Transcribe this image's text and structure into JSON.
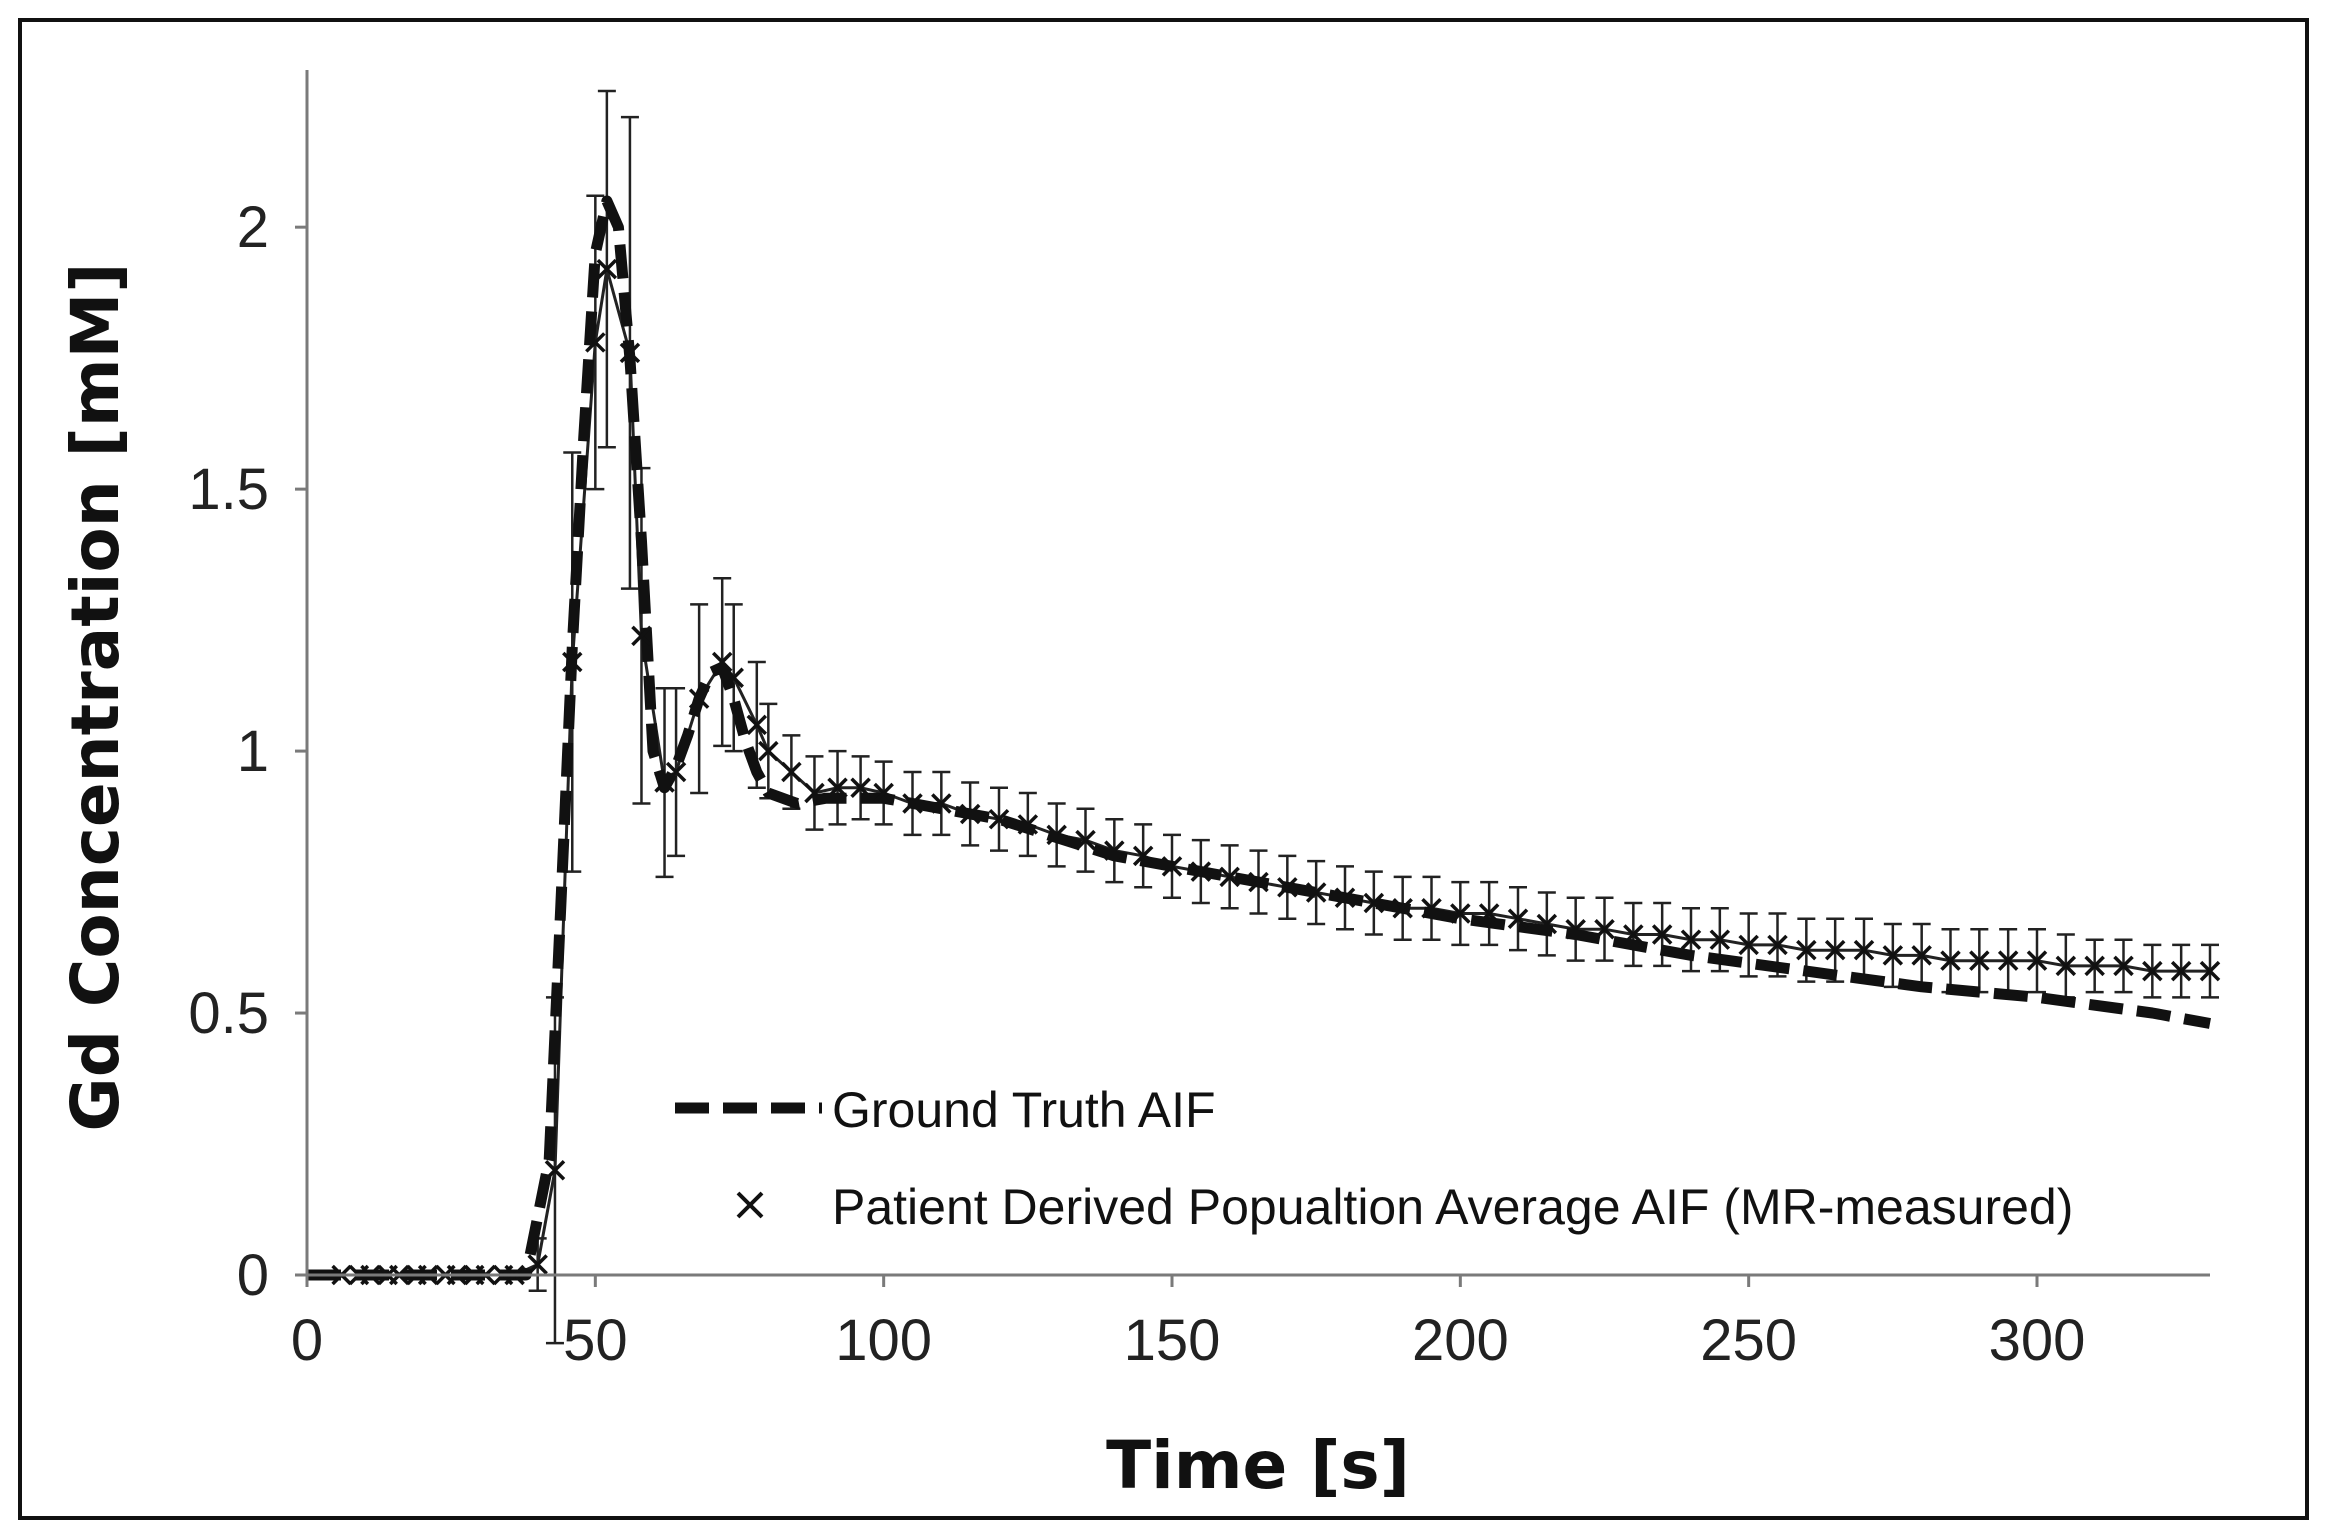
{
  "chart_data": {
    "type": "line",
    "title": "",
    "xlabel": "Time [s]",
    "ylabel": "Gd Concentration [mM]",
    "xlim": [
      0,
      330
    ],
    "ylim": [
      0,
      2.3
    ],
    "xticks": [
      0,
      50,
      100,
      150,
      200,
      250,
      300
    ],
    "xtick_labels": [
      "0",
      "50",
      "100",
      "150",
      "200",
      "250",
      "300"
    ],
    "yticks": [
      0,
      0.5,
      1,
      1.5,
      2
    ],
    "ytick_labels": [
      "0",
      "0.5",
      "1",
      "1.5",
      "2"
    ],
    "grid": false,
    "legend_position": "bottom-right",
    "series": [
      {
        "name": "Ground Truth AIF",
        "style": "dashed",
        "color": "#111111",
        "x": [
          0,
          38,
          42,
          44,
          46,
          48,
          50,
          52,
          54,
          56,
          58,
          60,
          62,
          64,
          66,
          68,
          70,
          72,
          74,
          76,
          78,
          80,
          85,
          90,
          100,
          120,
          140,
          160,
          180,
          200,
          220,
          240,
          260,
          280,
          300,
          320,
          330
        ],
        "y": [
          0,
          0,
          0.22,
          0.7,
          1.2,
          1.6,
          1.95,
          2.05,
          2.0,
          1.75,
          1.4,
          1.0,
          0.93,
          0.97,
          1.03,
          1.1,
          1.15,
          1.16,
          1.1,
          1.02,
          0.96,
          0.92,
          0.9,
          0.91,
          0.91,
          0.87,
          0.8,
          0.76,
          0.72,
          0.68,
          0.65,
          0.61,
          0.58,
          0.55,
          0.53,
          0.5,
          0.48
        ]
      },
      {
        "name": "Patient Derived Popualtion Average AIF (MR-measured)",
        "style": "markers-x-with-errorbars",
        "color": "#111111",
        "x": [
          6,
          9,
          11,
          14,
          16,
          19,
          21,
          24,
          26,
          29,
          31,
          34,
          36,
          40,
          43,
          46,
          50,
          52,
          56,
          58,
          62,
          64,
          68,
          72,
          74,
          78,
          80,
          84,
          88,
          92,
          96,
          100,
          105,
          110,
          115,
          120,
          125,
          130,
          135,
          140,
          145,
          150,
          155,
          160,
          165,
          170,
          175,
          180,
          185,
          190,
          195,
          200,
          205,
          210,
          215,
          220,
          225,
          230,
          235,
          240,
          245,
          250,
          255,
          260,
          265,
          270,
          275,
          280,
          285,
          290,
          295,
          300,
          305,
          310,
          315,
          320,
          325,
          330
        ],
        "y": [
          0,
          0,
          0,
          0,
          0,
          0,
          0,
          0,
          0,
          0,
          0,
          0,
          0,
          0.02,
          0.2,
          1.17,
          1.78,
          1.92,
          1.76,
          1.22,
          0.94,
          0.96,
          1.1,
          1.17,
          1.14,
          1.05,
          1.0,
          0.96,
          0.92,
          0.93,
          0.93,
          0.92,
          0.9,
          0.9,
          0.88,
          0.87,
          0.86,
          0.84,
          0.83,
          0.81,
          0.8,
          0.78,
          0.77,
          0.76,
          0.75,
          0.74,
          0.73,
          0.72,
          0.71,
          0.7,
          0.7,
          0.69,
          0.69,
          0.68,
          0.67,
          0.66,
          0.66,
          0.65,
          0.65,
          0.64,
          0.64,
          0.63,
          0.63,
          0.62,
          0.62,
          0.62,
          0.61,
          0.61,
          0.6,
          0.6,
          0.6,
          0.6,
          0.59,
          0.59,
          0.59,
          0.58,
          0.58,
          0.58
        ],
        "err": [
          0,
          0,
          0,
          0,
          0,
          0,
          0,
          0,
          0,
          0,
          0,
          0,
          0,
          0.05,
          0.33,
          0.4,
          0.28,
          0.34,
          0.45,
          0.32,
          0.18,
          0.16,
          0.18,
          0.16,
          0.14,
          0.12,
          0.09,
          0.07,
          0.07,
          0.07,
          0.06,
          0.06,
          0.06,
          0.06,
          0.06,
          0.06,
          0.06,
          0.06,
          0.06,
          0.06,
          0.06,
          0.06,
          0.06,
          0.06,
          0.06,
          0.06,
          0.06,
          0.06,
          0.06,
          0.06,
          0.06,
          0.06,
          0.06,
          0.06,
          0.06,
          0.06,
          0.06,
          0.06,
          0.06,
          0.06,
          0.06,
          0.06,
          0.06,
          0.06,
          0.06,
          0.06,
          0.06,
          0.06,
          0.06,
          0.06,
          0.06,
          0.06,
          0.06,
          0.05,
          0.05,
          0.05,
          0.05,
          0.05
        ]
      }
    ]
  }
}
